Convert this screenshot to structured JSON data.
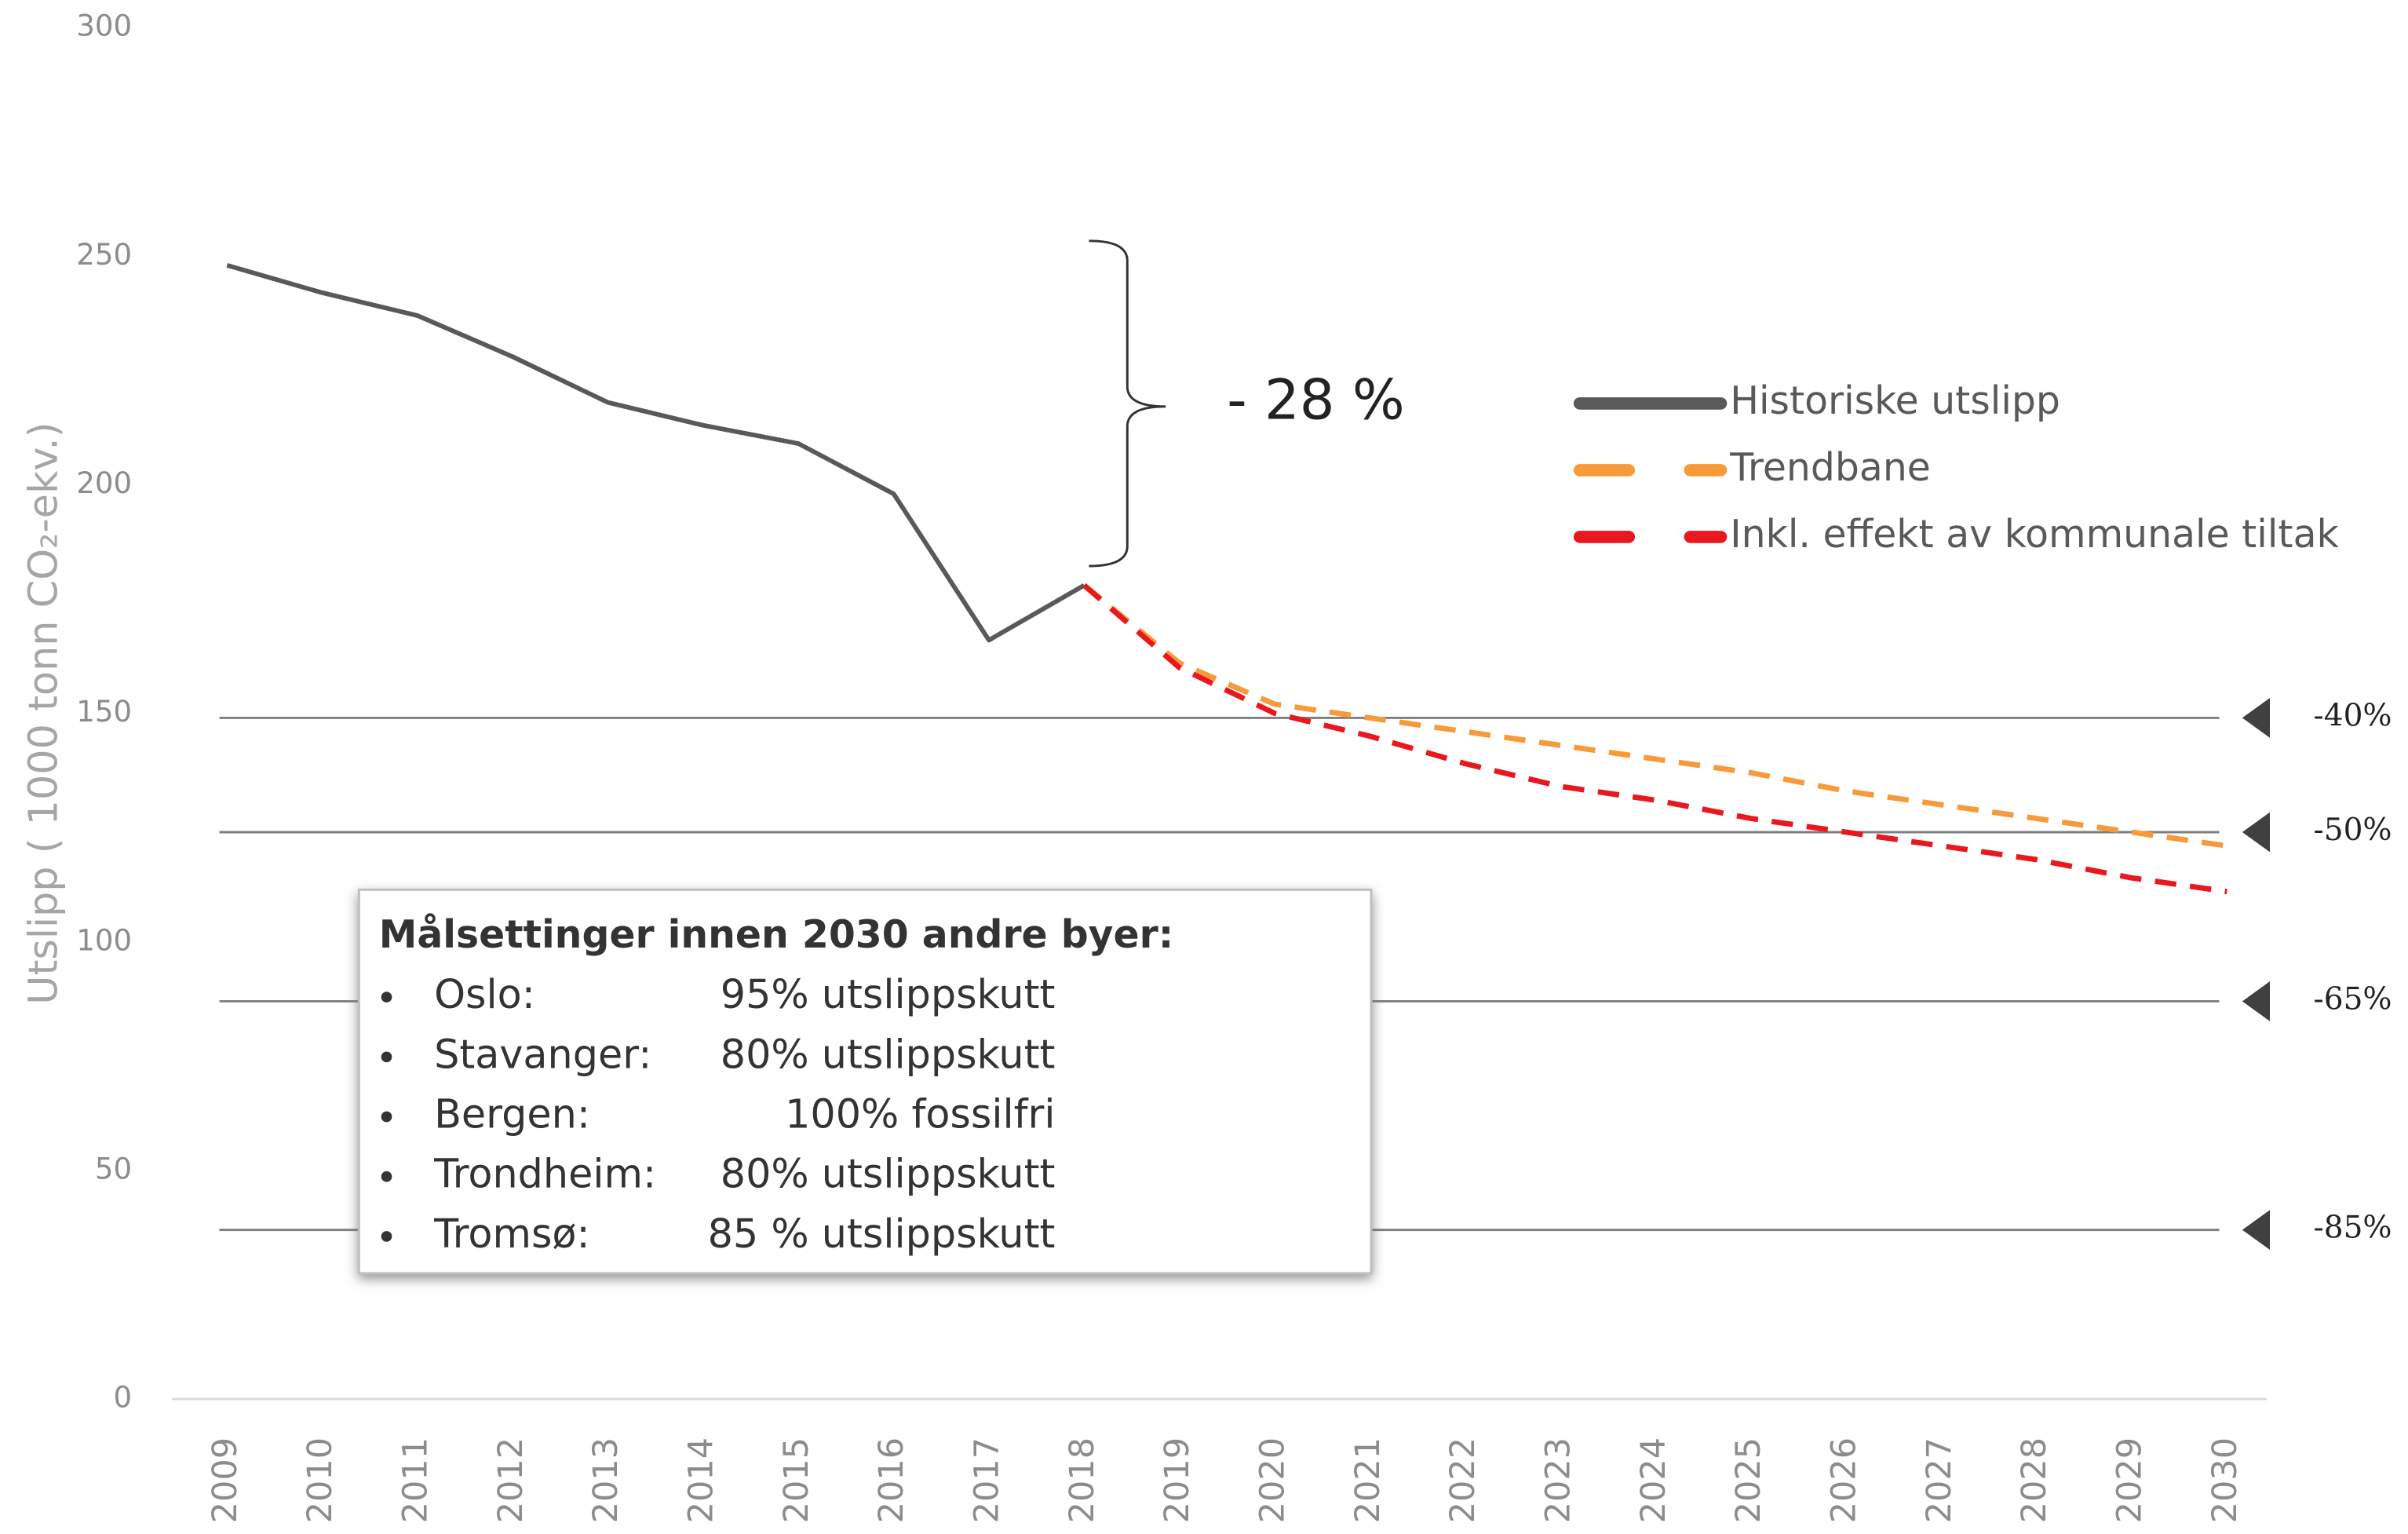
{
  "chart_data": {
    "type": "line",
    "y_label": "Utslipp  ( 1000 tonn CO₂-ekv.)",
    "categories": [
      "2009",
      "2010",
      "2011",
      "2012",
      "2013",
      "2014",
      "2015",
      "2016",
      "2017",
      "2018",
      "2019",
      "2020",
      "2021",
      "2022",
      "2023",
      "2024",
      "2025",
      "2026",
      "2027",
      "2028",
      "2029",
      "2030"
    ],
    "series": [
      {
        "name": "Historiske utslipp",
        "color": "#595959",
        "dash": false,
        "values": [
          248,
          242,
          237,
          228,
          218,
          213,
          209,
          198,
          166,
          178,
          null,
          null,
          null,
          null,
          null,
          null,
          null,
          null,
          null,
          null,
          null,
          null
        ]
      },
      {
        "name": "Trendbane",
        "color": "#f79a3a",
        "dash": true,
        "values": [
          null,
          null,
          null,
          null,
          null,
          null,
          null,
          null,
          null,
          178,
          161,
          152,
          149,
          146,
          143,
          140,
          137,
          133,
          130,
          127,
          124,
          121
        ]
      },
      {
        "name": "Inkl. effekt av kommunale tiltak",
        "color": "#e8181e",
        "dash": true,
        "values": [
          null,
          null,
          null,
          null,
          null,
          null,
          null,
          null,
          null,
          178,
          160,
          150,
          145,
          139,
          134,
          131,
          127,
          124,
          121,
          118,
          114,
          111
        ]
      }
    ],
    "ylim": [
      0,
      300
    ],
    "yticks": [
      0,
      50,
      100,
      150,
      200,
      250,
      300
    ],
    "targets": [
      {
        "value": 149,
        "label": "-40%"
      },
      {
        "value": 124,
        "label": "-50%"
      },
      {
        "value": 87,
        "label": "-65%"
      },
      {
        "value": 37,
        "label": "-85%"
      }
    ],
    "annotation": "- 28 %",
    "goals_box": {
      "title": "Målsettinger innen 2030 andre byer:",
      "items": [
        {
          "city": "Oslo:",
          "goal": "95% utslippskutt"
        },
        {
          "city": "Stavanger:",
          "goal": "80% utslippskutt"
        },
        {
          "city": "Bergen:",
          "goal": "100% fossilfri"
        },
        {
          "city": "Trondheim:",
          "goal": "80% utslippskutt"
        },
        {
          "city": "Tromsø:",
          "goal": "85 % utslippskutt"
        }
      ]
    }
  }
}
